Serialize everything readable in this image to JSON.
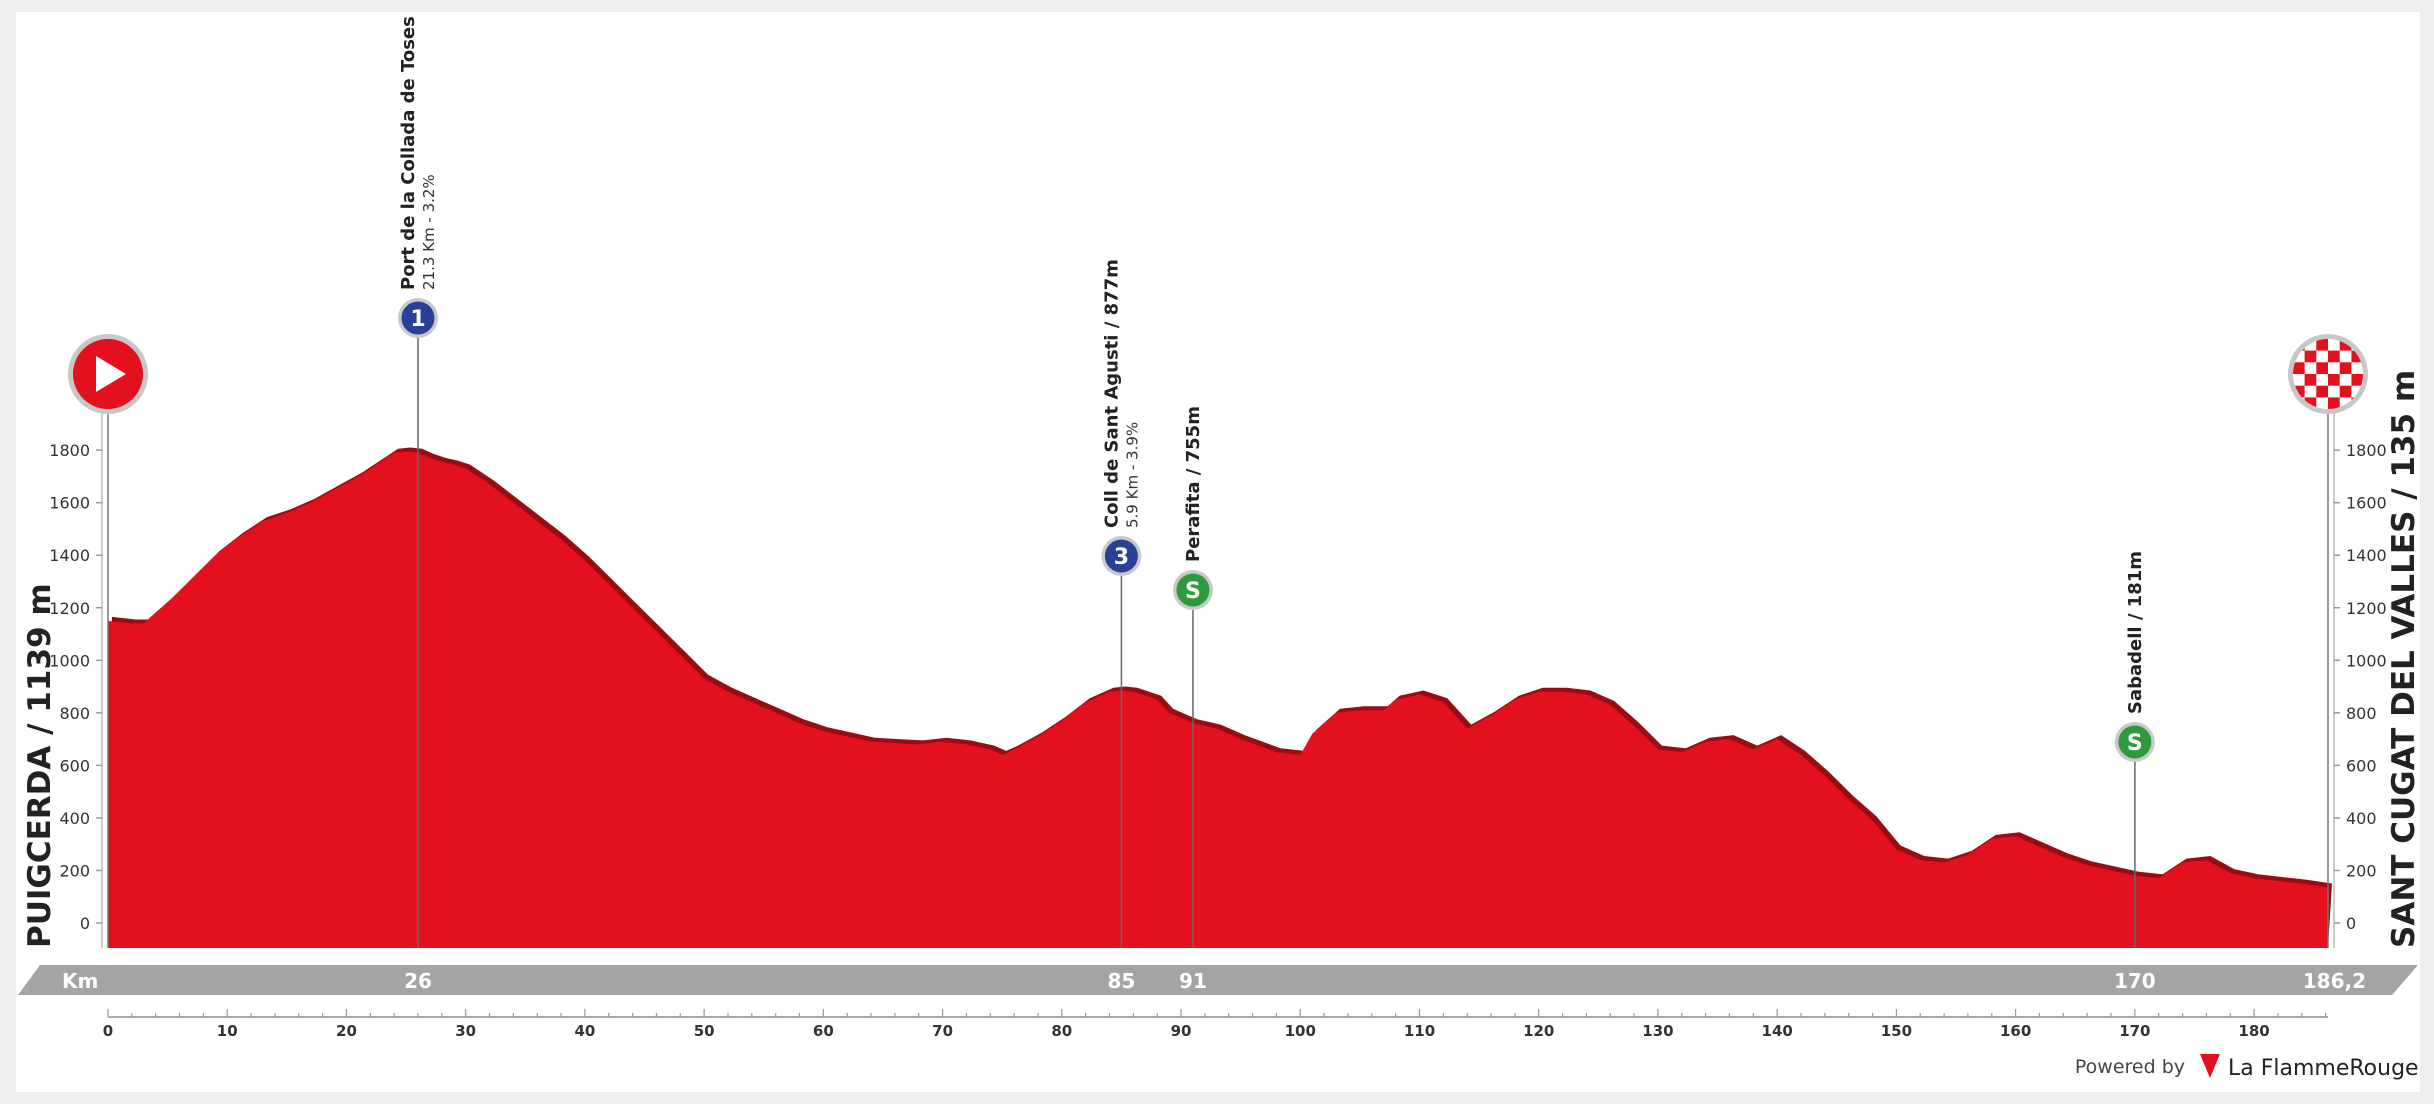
{
  "chart_data": {
    "type": "area",
    "title": "",
    "start": {
      "name": "PUIGCERDA",
      "altitude": "1139 m",
      "label": "PUIGCERDA / 1139 m"
    },
    "finish": {
      "name": "SANT CUGAT DEL VALLES",
      "altitude": "135 m",
      "label": "SANT CUGAT DEL VALLES / 135 m"
    },
    "xlabel": "Km",
    "xlim": [
      0,
      186.2
    ],
    "ylim": [
      -100,
      1900
    ],
    "x_ticks": [
      0,
      10,
      20,
      30,
      40,
      50,
      60,
      70,
      80,
      90,
      100,
      110,
      120,
      130,
      140,
      150,
      160,
      170,
      180
    ],
    "y_ticks": [
      0,
      200,
      400,
      600,
      800,
      1000,
      1200,
      1400,
      1600,
      1800
    ],
    "km_band_labels": [
      "26",
      "85",
      "91",
      "170",
      "186,2"
    ],
    "km_band_positions": [
      26,
      85,
      91,
      170,
      186.2
    ],
    "profile": {
      "x": [
        0,
        2,
        3,
        5,
        7,
        9,
        11,
        13,
        15,
        17,
        19,
        21,
        23,
        24,
        25,
        26,
        27,
        28,
        29,
        30,
        32,
        34,
        36,
        38,
        40,
        42,
        44,
        46,
        48,
        50,
        52,
        54,
        56,
        58,
        60,
        62,
        64,
        66,
        68,
        70,
        72,
        74,
        75,
        76,
        78,
        80,
        82,
        84,
        85,
        86,
        88,
        89,
        91,
        93,
        95,
        98,
        100,
        101,
        103,
        105,
        107,
        108,
        110,
        112,
        114,
        116,
        118,
        120,
        122,
        124,
        126,
        128,
        130,
        132,
        134,
        136,
        138,
        140,
        142,
        144,
        146,
        148,
        150,
        152,
        154,
        156,
        158,
        160,
        162,
        164,
        166,
        168,
        170,
        172,
        174,
        176,
        178,
        180,
        182,
        184,
        186.2
      ],
      "y": [
        1150,
        1140,
        1140,
        1220,
        1310,
        1400,
        1470,
        1530,
        1560,
        1600,
        1650,
        1700,
        1760,
        1790,
        1795,
        1790,
        1770,
        1755,
        1745,
        1730,
        1670,
        1600,
        1530,
        1460,
        1380,
        1290,
        1200,
        1110,
        1020,
        930,
        880,
        840,
        800,
        760,
        730,
        710,
        690,
        685,
        680,
        690,
        680,
        660,
        640,
        660,
        710,
        770,
        840,
        880,
        885,
        880,
        850,
        800,
        760,
        740,
        700,
        650,
        640,
        720,
        800,
        810,
        810,
        850,
        870,
        840,
        740,
        790,
        850,
        880,
        880,
        870,
        830,
        750,
        660,
        650,
        690,
        700,
        660,
        700,
        640,
        560,
        470,
        390,
        280,
        240,
        230,
        260,
        320,
        330,
        290,
        250,
        220,
        200,
        180,
        170,
        230,
        240,
        190,
        170,
        160,
        150,
        135
      ]
    },
    "markers": [
      {
        "km": 26,
        "icon": "cat-1-climb-icon",
        "badge": "1",
        "title": "Port de la Collada de Toses",
        "subtitle": "21.3 Km - 3.2%"
      },
      {
        "km": 85,
        "icon": "cat-3-climb-icon",
        "badge": "3",
        "title": "Coll de Sant Agusti / 877m",
        "subtitle": "5.9 Km - 3.9%"
      },
      {
        "km": 91,
        "icon": "sprint-icon",
        "badge": "S",
        "title": "Perafita / 755m",
        "subtitle": ""
      },
      {
        "km": 170,
        "icon": "sprint-icon",
        "badge": "S",
        "title": "Sabadell / 181m",
        "subtitle": ""
      }
    ],
    "colors": {
      "profile_fill": "#e3101e",
      "profile_shadow": "#9a0c14",
      "km_band": "#a2a4a6",
      "sprint_green": "#2e9a3e",
      "climb_blue": "#2a3f96",
      "start_red": "#e3101e"
    }
  },
  "footer": {
    "powered_by": "Powered by",
    "brand": "La FlammeRouge",
    "brand_icon": "flamme-rouge-icon"
  }
}
